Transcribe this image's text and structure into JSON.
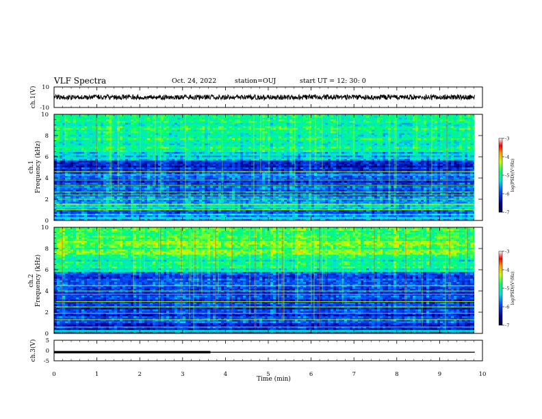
{
  "header": {
    "title": "VLF Spectra",
    "date": "Oct. 24, 2022",
    "station": "station=OUJ",
    "start": "start UT =  12: 30: 0"
  },
  "chart_data": [
    {
      "type": "line",
      "name": "ch1-waveform",
      "ylabel": "ch.1(V)",
      "ylim": [
        -10,
        10
      ],
      "yticks": [
        "10",
        "-10"
      ],
      "xlim": [
        0,
        10
      ],
      "series": [
        {
          "name": "ch.1",
          "level": 0,
          "noise_amplitude": 1.2,
          "xmax": 9.82
        }
      ]
    },
    {
      "type": "heatmap",
      "name": "ch1-spectrogram",
      "ylabel": "Frequency (kHz)",
      "chlabel": "ch.1",
      "ylim": [
        0,
        10
      ],
      "yticks": [
        "0",
        "2",
        "4",
        "6",
        "8",
        "10"
      ],
      "xlim": [
        0,
        10
      ],
      "xmax": 9.82,
      "colorbar": {
        "label": "log(PSD)(V²/Hz)",
        "range": [
          -7,
          -3
        ],
        "ticks": [
          "-3",
          "-4",
          "-5",
          "-6",
          "-7"
        ]
      }
    },
    {
      "type": "heatmap",
      "name": "ch2-spectrogram",
      "ylabel": "Frequency (kHz)",
      "chlabel": "ch.2",
      "ylim": [
        0,
        10
      ],
      "yticks": [
        "0",
        "2",
        "4",
        "6",
        "8",
        "10"
      ],
      "xlim": [
        0,
        10
      ],
      "xmax": 9.82,
      "colorbar": {
        "label": "log(PSD)(V²/Hz)",
        "range": [
          -7,
          -3
        ],
        "ticks": [
          "-3",
          "-4",
          "-5",
          "-6",
          "-7"
        ]
      }
    },
    {
      "type": "line",
      "name": "ch3-trace",
      "ylabel": "ch.3(V)",
      "ylim": [
        -5,
        5
      ],
      "yticks": [
        "5",
        "0",
        "-5"
      ],
      "xlim": [
        0,
        10
      ],
      "xticks": [
        "0",
        "1",
        "2",
        "3",
        "4",
        "5",
        "6",
        "7",
        "8",
        "9",
        "10"
      ],
      "xlabel": "Time (min)",
      "series": [
        {
          "name": "ch.3 thick",
          "x": [
            0,
            3.65
          ],
          "y": -0.8
        },
        {
          "name": "ch.3 thin",
          "x": [
            3.65,
            9.82
          ],
          "y": -0.8
        }
      ]
    }
  ]
}
